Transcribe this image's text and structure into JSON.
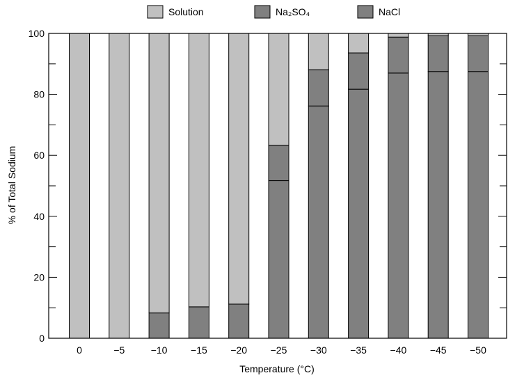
{
  "chart_data": {
    "type": "bar",
    "stacked": true,
    "categories": [
      "0",
      "−5",
      "−10",
      "−15",
      "−20",
      "−25",
      "−30",
      "−35",
      "−40",
      "−45",
      "−50"
    ],
    "series": [
      {
        "name": "NaCl",
        "color": "#808080",
        "values": [
          0,
          0,
          8.3,
          10.3,
          11.2,
          51.7,
          76.2,
          81.7,
          87.0,
          87.5,
          87.5
        ]
      },
      {
        "name": "Na₂SO₄",
        "color": "#808080",
        "values": [
          0,
          0,
          0,
          0,
          0,
          11.6,
          11.9,
          11.9,
          11.8,
          11.7,
          11.7
        ]
      },
      {
        "name": "Solution",
        "color": "#c0c0c0",
        "values": [
          100,
          100,
          91.7,
          89.7,
          88.8,
          36.7,
          11.9,
          6.4,
          1.2,
          0.8,
          0.8
        ]
      }
    ],
    "legend": {
      "placement": "top",
      "items": [
        {
          "label": "Solution",
          "color": "#c0c0c0"
        },
        {
          "label": "Na₂SO₄",
          "color": "#808080"
        },
        {
          "label": "NaCl",
          "color": "#808080"
        }
      ]
    },
    "xlabel": "Temperature (°C)",
    "ylabel": "% of Total Sodium",
    "ylim": [
      0,
      100
    ],
    "yticks": [
      "0",
      "20",
      "40",
      "60",
      "80",
      "100"
    ],
    "grid": false
  }
}
